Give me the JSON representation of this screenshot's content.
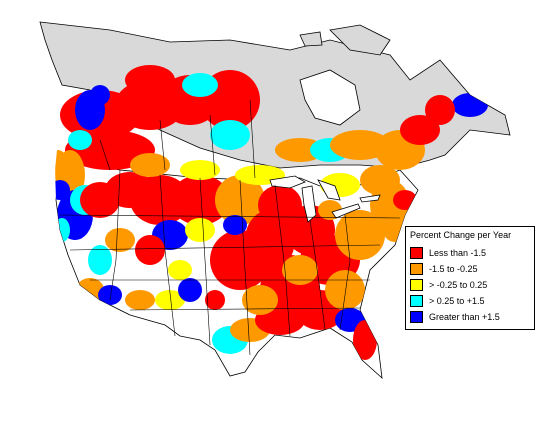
{
  "colors": {
    "background": "#ffffff",
    "canada_no_data": "#d9d9d9",
    "no_data": "#ffffff",
    "border": "#000000"
  },
  "legend": {
    "title": "Percent Change per Year",
    "items": [
      {
        "label": "Less than -1.5",
        "color": "#ff0000"
      },
      {
        "label": "-1.5 to -0.25",
        "color": "#ff9900"
      },
      {
        "label": "> -0.25 to 0.25",
        "color": "#ffff00"
      },
      {
        "label": "> 0.25 to +1.5",
        "color": "#00ffff"
      },
      {
        "label": "Greater than +1.5",
        "color": "#0000ff"
      }
    ]
  }
}
